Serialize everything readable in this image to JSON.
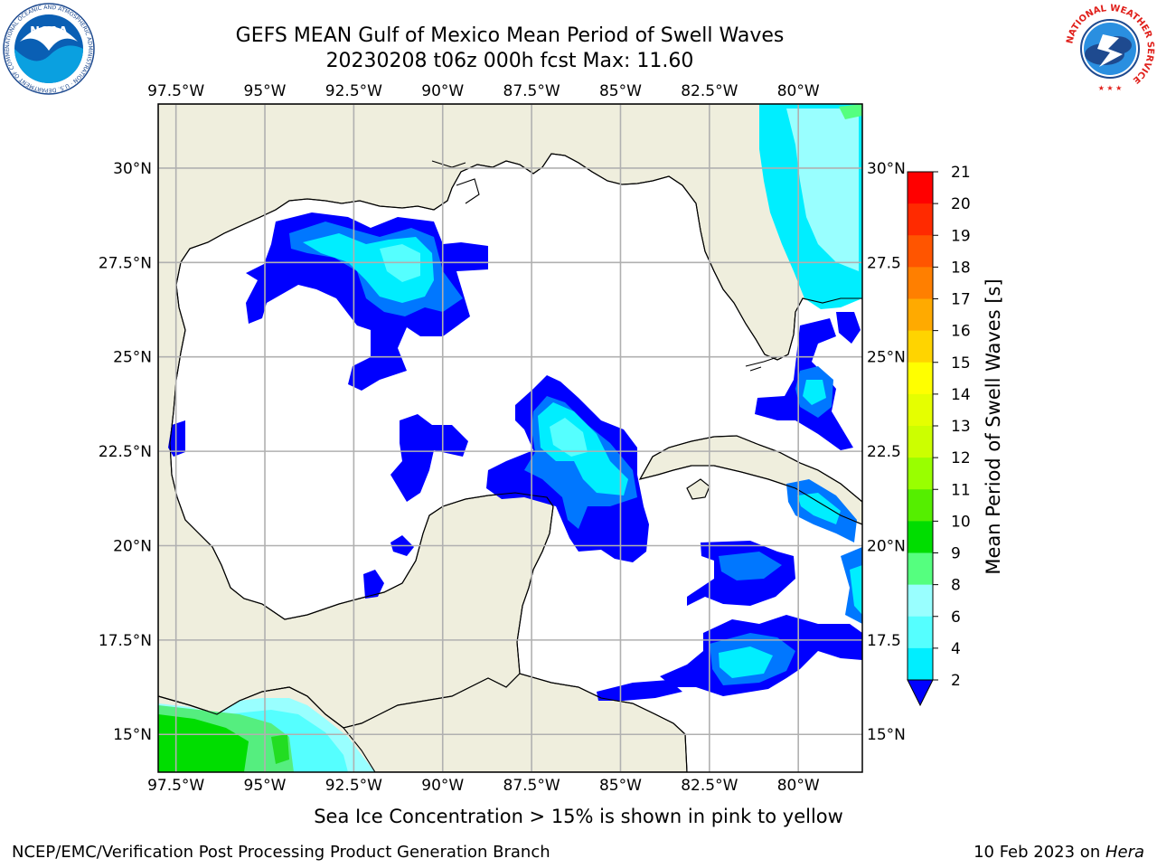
{
  "title": {
    "line1": "GEFS MEAN Gulf of Mexico Mean Period of Swell Waves",
    "line2": "20230208 t06z 000h fcst   Max: 11.60"
  },
  "axes": {
    "lon_labels": [
      "97.5°W",
      "95°W",
      "92.5°W",
      "90°W",
      "87.5°W",
      "85°W",
      "82.5°W",
      "80°W"
    ],
    "lon_values": [
      -97.5,
      -95,
      -92.5,
      -90,
      -87.5,
      -85,
      -82.5,
      -80
    ],
    "lat_labels_left": [
      "30°N",
      "27.5°N",
      "25°N",
      "22.5°N",
      "20°N",
      "17.5°N",
      "15°N"
    ],
    "lat_labels_right": [
      "30°N",
      "27.5",
      "25°N",
      "22.5",
      "20°N",
      "17.5",
      "15°N"
    ],
    "lat_values": [
      30,
      27.5,
      25,
      22.5,
      20,
      17.5,
      15
    ],
    "lon_range": [
      -98,
      -78.2
    ],
    "lat_range": [
      14,
      31.7
    ],
    "grid": true
  },
  "colorbar": {
    "label": "Mean Period of Swell Waves [s]",
    "ticks": [
      "21",
      "20",
      "19",
      "18",
      "17",
      "16",
      "15",
      "14",
      "13",
      "12",
      "11",
      "10",
      "9",
      "8",
      "6",
      "4",
      "2"
    ],
    "colors": [
      "#ff0000",
      "#ff2a00",
      "#ff5500",
      "#ff7f00",
      "#ffaa00",
      "#ffd400",
      "#ffff00",
      "#e5ff00",
      "#ccff00",
      "#99ff00",
      "#55ee00",
      "#00dd00",
      "#55ff7f",
      "#99ffff",
      "#55ffff",
      "#00eeff",
      "#0077ff",
      "#0000ff"
    ],
    "extend": "min"
  },
  "subtitle": "Sea Ice Concentration > 15% is shown in pink to yellow",
  "footer": {
    "left": "NCEP/EMC/Verification Post Processing Product Generation Branch",
    "right_prefix": "10 Feb 2023 on ",
    "right_italic": "Hera"
  },
  "logos": {
    "noaa_text": "NOAA",
    "noaa_ring": "NATIONAL OCEANIC AND ATMOSPHERIC ADMINISTRATION · U.S. DEPARTMENT OF COMMERCE",
    "nws_ring": "NATIONAL WEATHER SERVICE"
  },
  "colors": {
    "land": "#efeedd",
    "ocean": "#ffffff",
    "grid": "#b0b0b0"
  }
}
